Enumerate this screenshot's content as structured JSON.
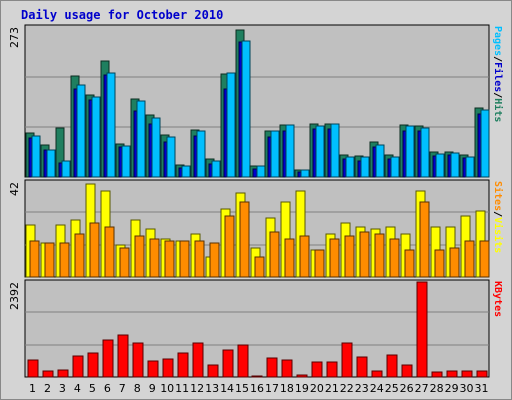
{
  "chart_data": {
    "type": "bar",
    "title": "Daily usage for October 2010",
    "categories": [
      "1",
      "2",
      "3",
      "4",
      "5",
      "6",
      "7",
      "8",
      "9",
      "10",
      "11",
      "12",
      "13",
      "14",
      "15",
      "16",
      "17",
      "18",
      "19",
      "20",
      "21",
      "22",
      "23",
      "24",
      "25",
      "26",
      "27",
      "28",
      "29",
      "30",
      "31"
    ],
    "weekend_days": [
      "2",
      "3",
      "9",
      "10",
      "16",
      "17",
      "23",
      "24",
      "30",
      "31"
    ],
    "colors": {
      "hits": "#1f7f5f",
      "files": "#0000cc",
      "pages": "#00bfff",
      "visits": "#ffff00",
      "sites": "#ff8c00",
      "kbytes": "#ff0000",
      "weekday_label": "#000000",
      "weekend_label": "#00804f"
    },
    "panels": [
      {
        "ymax": 273,
        "ymax_label": "273",
        "legend": [
          {
            "text": "Pages",
            "color": "#00bfff"
          },
          {
            "text": "/",
            "color": "#000000"
          },
          {
            "text": "Files",
            "color": "#0000cc"
          },
          {
            "text": "/",
            "color": "#000000"
          },
          {
            "text": "Hits",
            "color": "#1f7f5f"
          }
        ],
        "series": [
          {
            "name": "Hits",
            "color": "#1f7f5f",
            "values": [
              80,
              58,
              90,
              183,
              150,
              212,
              60,
              142,
              112,
              77,
              22,
              86,
              32,
              188,
              268,
              20,
              84,
              95,
              12,
              96,
              97,
              40,
              38,
              64,
              40,
              95,
              92,
              45,
              46,
              40,
              125
            ]
          },
          {
            "name": "Files",
            "color": "#0000cc",
            "values": [
              71,
              50,
              25,
              160,
              140,
              186,
              55,
              120,
              96,
              64,
              16,
              75,
              24,
              161,
              245,
              15,
              73,
              84,
              10,
              87,
              88,
              32,
              30,
              54,
              33,
              84,
              83,
              38,
              40,
              35,
              115
            ]
          },
          {
            "name": "Pages",
            "color": "#00bfff",
            "values": [
              74,
              50,
              29,
              168,
              145,
              190,
              57,
              138,
              108,
              72,
              20,
              84,
              30,
              190,
              247,
              20,
              84,
              94,
              12,
              93,
              96,
              37,
              36,
              58,
              36,
              93,
              90,
              42,
              43,
              36,
              122
            ]
          }
        ]
      },
      {
        "ymax": 42,
        "ymax_label": "42",
        "legend": [
          {
            "text": "Sites",
            "color": "#ff8c00"
          },
          {
            "text": "/",
            "color": "#000000"
          },
          {
            "text": "Visits",
            "color": "#ffff00"
          }
        ],
        "series": [
          {
            "name": "Visits",
            "color": "#ffff00",
            "values": [
              23,
              15,
              23,
              25,
              41,
              38,
              14,
              25,
              21,
              17,
              16,
              19,
              9,
              30,
              37,
              13,
              26,
              33,
              38,
              12,
              19,
              24,
              22,
              21,
              22,
              19,
              38,
              22,
              22,
              27,
              29
            ]
          },
          {
            "name": "Sites",
            "color": "#ff8c00",
            "values": [
              16,
              15,
              15,
              19,
              24,
              22,
              13,
              18,
              17,
              16,
              16,
              16,
              15,
              27,
              33,
              9,
              20,
              17,
              18,
              12,
              17,
              18,
              20,
              19,
              17,
              12,
              33,
              12,
              13,
              16,
              16
            ]
          }
        ]
      },
      {
        "ymax": 2392,
        "ymax_label": "2392",
        "legend": [
          {
            "text": "KBytes",
            "color": "#ff0000"
          }
        ],
        "series": [
          {
            "name": "KBytes",
            "color": "#ff0000",
            "values": [
              440,
              140,
              165,
              520,
              600,
              930,
              1070,
              850,
              400,
              460,
              600,
              860,
              310,
              680,
              800,
              30,
              480,
              440,
              50,
              380,
              380,
              860,
              500,
              140,
              560,
              300,
              2392,
              120,
              150,
              140,
              140
            ]
          }
        ]
      }
    ]
  }
}
